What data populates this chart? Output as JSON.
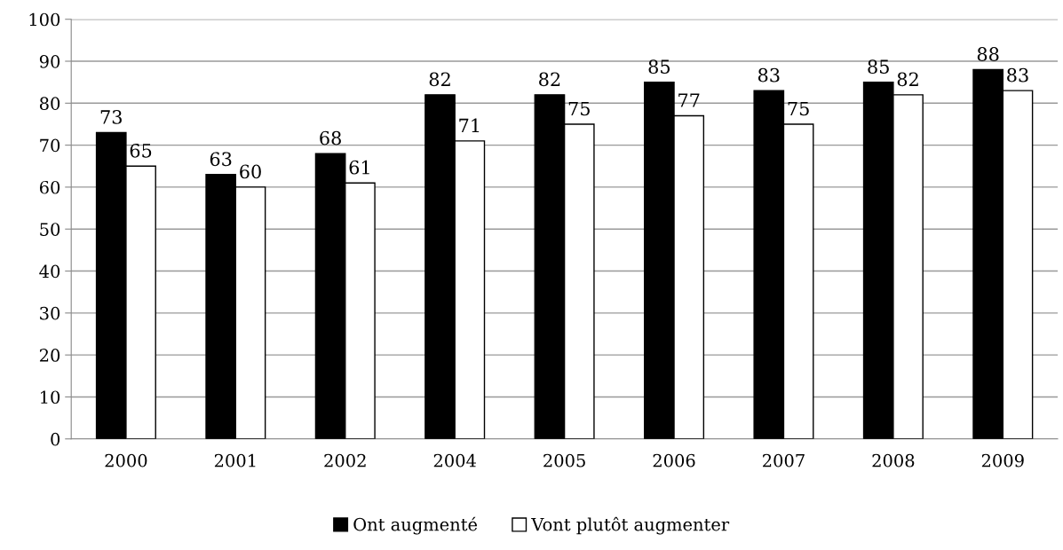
{
  "chart_data": {
    "type": "bar",
    "categories": [
      "2000",
      "2001",
      "2002",
      "2004",
      "2005",
      "2006",
      "2007",
      "2008",
      "2009"
    ],
    "series": [
      {
        "name": "Ont augmenté",
        "color": "#000000",
        "values": [
          73,
          63,
          68,
          82,
          82,
          85,
          83,
          85,
          88
        ]
      },
      {
        "name": "Vont plutôt augmenter",
        "color": "#ffffff",
        "values": [
          65,
          60,
          61,
          71,
          75,
          77,
          75,
          82,
          83
        ]
      }
    ],
    "ylim": [
      0,
      100
    ],
    "yticks": [
      0,
      10,
      20,
      30,
      40,
      50,
      60,
      70,
      80,
      90,
      100
    ],
    "grid": "y",
    "legend": "bottom",
    "data_labels": true
  }
}
